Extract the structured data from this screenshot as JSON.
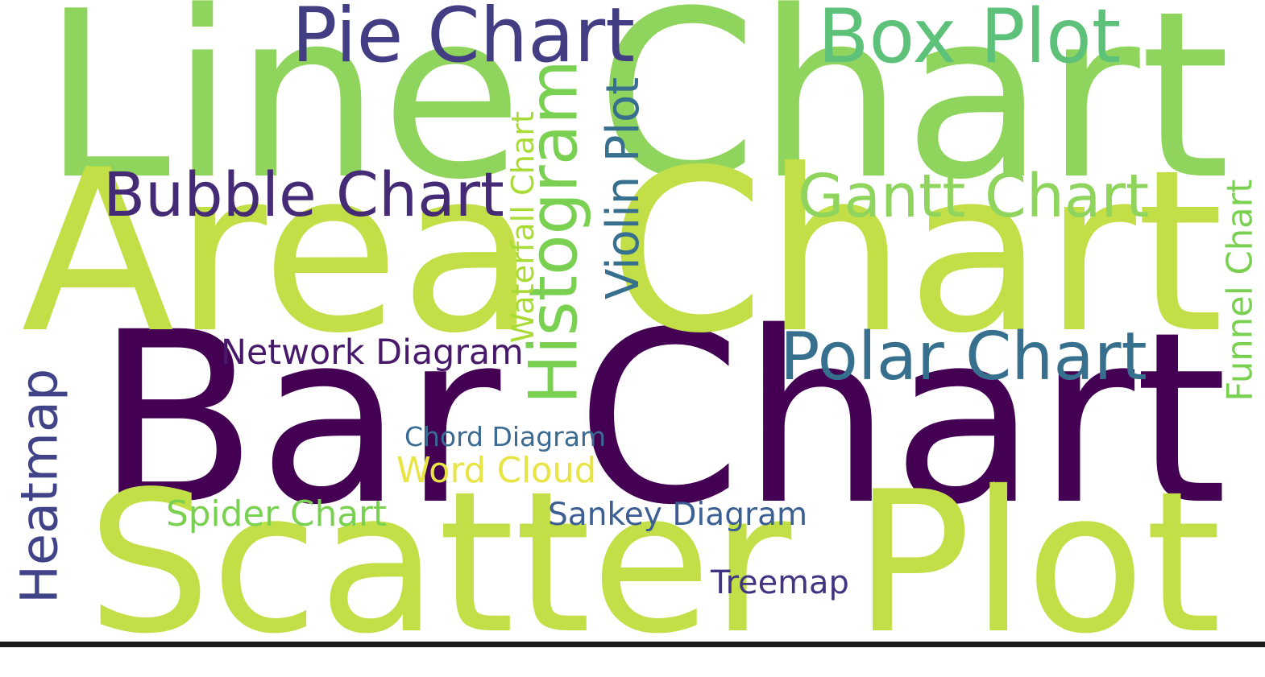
{
  "chart_data": {
    "type": "wordcloud",
    "title": "",
    "colormap": "viridis",
    "background": "#ffffff",
    "words": [
      {
        "text": "Bar Chart",
        "color": "#440154",
        "orientation": "horizontal"
      },
      {
        "text": "Line Chart",
        "color": "#8fd45c",
        "orientation": "horizontal"
      },
      {
        "text": "Area Chart",
        "color": "#c2df48",
        "orientation": "horizontal"
      },
      {
        "text": "Scatter Plot",
        "color": "#c2df48",
        "orientation": "horizontal"
      },
      {
        "text": "Pie Chart",
        "color": "#433d84",
        "orientation": "horizontal"
      },
      {
        "text": "Box Plot",
        "color": "#5ec17a",
        "orientation": "horizontal"
      },
      {
        "text": "Bubble Chart",
        "color": "#452a75",
        "orientation": "horizontal"
      },
      {
        "text": "Gantt Chart",
        "color": "#8fd45c",
        "orientation": "horizontal"
      },
      {
        "text": "Histogram",
        "color": "#7ad151",
        "orientation": "vertical"
      },
      {
        "text": "Violin Plot",
        "color": "#37708e",
        "orientation": "vertical"
      },
      {
        "text": "Waterfall Chart",
        "color": "#a8db34",
        "orientation": "vertical"
      },
      {
        "text": "Polar Chart",
        "color": "#37708e",
        "orientation": "horizontal"
      },
      {
        "text": "Network Diagram",
        "color": "#48196b",
        "orientation": "horizontal"
      },
      {
        "text": "Heatmap",
        "color": "#404387",
        "orientation": "vertical"
      },
      {
        "text": "Funnel Chart",
        "color": "#7ad151",
        "orientation": "vertical"
      },
      {
        "text": "Chord Diagram",
        "color": "#3b6a93",
        "orientation": "horizontal"
      },
      {
        "text": "Word Cloud",
        "color": "#e8e444",
        "orientation": "horizontal"
      },
      {
        "text": "Spider Chart",
        "color": "#7ad151",
        "orientation": "horizontal"
      },
      {
        "text": "Sankey Diagram",
        "color": "#3b5e93",
        "orientation": "horizontal"
      },
      {
        "text": "Treemap",
        "color": "#433483",
        "orientation": "horizontal"
      }
    ]
  }
}
